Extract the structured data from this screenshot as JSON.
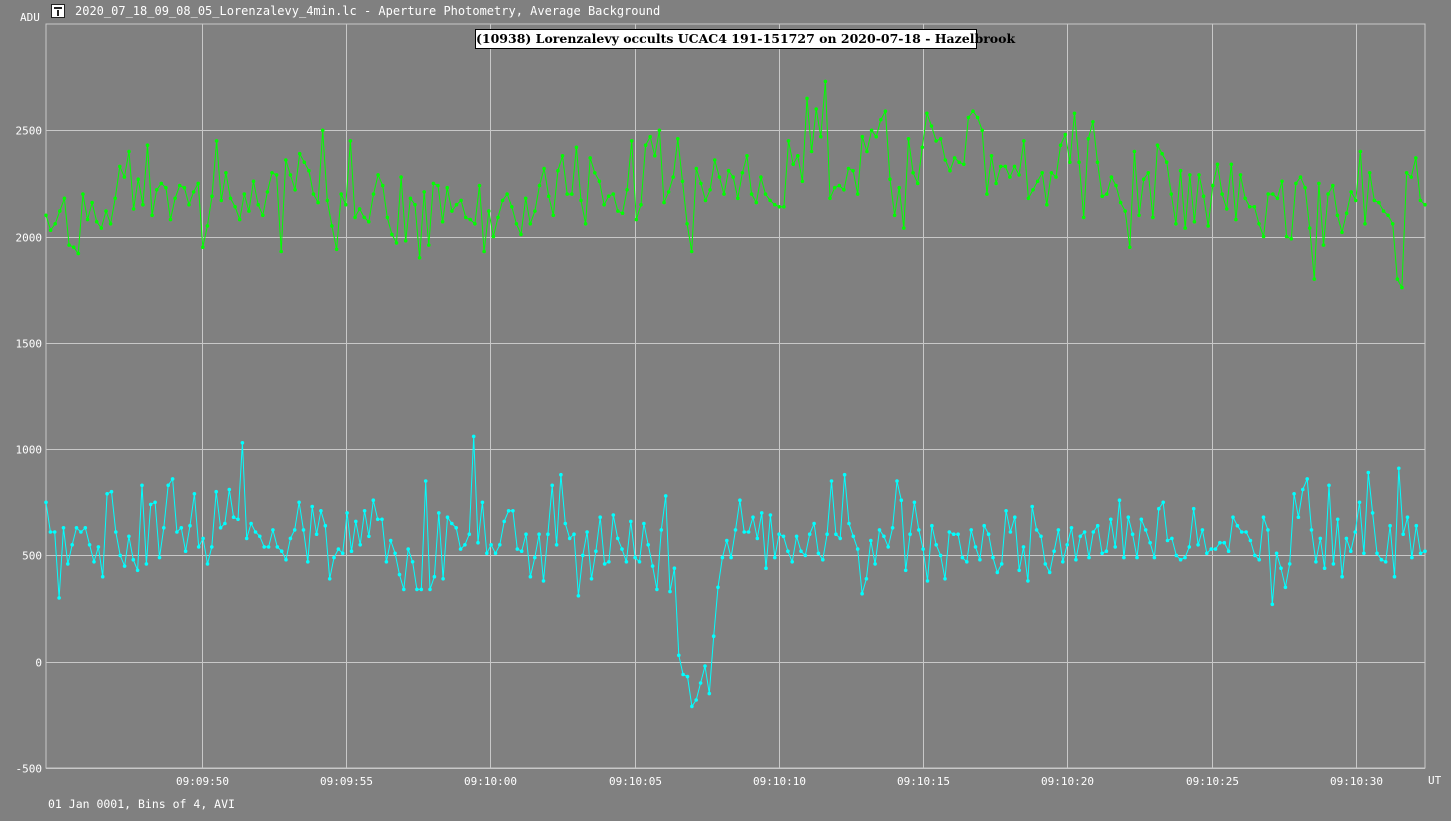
{
  "window": {
    "title": "2020_07_18_09_08_05_Lorenzalevy_4min.lc - Aperture Photometry, Average Background"
  },
  "footer_note": "01 Jan 0001, Bins of 4, AVI",
  "colors": {
    "background": "#808080",
    "grid": "#c8c8c8",
    "target_series": "#00ffff",
    "comparison_series": "#00ff00"
  },
  "chart_data": {
    "type": "line",
    "title": "(10938) Lorenzalevy occults UCAC4 191-151727 on 2020-07-18 - Hazelbrook",
    "ylabel": "ADU",
    "xlabel": "UT",
    "ylim": [
      -500,
      3000
    ],
    "xlim_seconds": [
      44.6,
      92.4
    ],
    "y_ticks": [
      -500,
      0,
      500,
      1000,
      1500,
      2000,
      2500
    ],
    "x_ticks": [
      {
        "label": "09:09:50",
        "value": 50
      },
      {
        "label": "09:09:55",
        "value": 55
      },
      {
        "label": "09:10:00",
        "value": 60
      },
      {
        "label": "09:10:05",
        "value": 65
      },
      {
        "label": "09:10:10",
        "value": 70
      },
      {
        "label": "09:10:15",
        "value": 75
      },
      {
        "label": "09:10:20",
        "value": 80
      },
      {
        "label": "09:10:25",
        "value": 85
      },
      {
        "label": "09:10:30",
        "value": 90
      }
    ],
    "grid": true,
    "legend": "none",
    "series": [
      {
        "color": "#00ff00",
        "x_start": 44.6,
        "x_end": 92.4,
        "values": [
          2100,
          2030,
          2060,
          2120,
          2180,
          1960,
          1950,
          1920,
          2200,
          2080,
          2160,
          2070,
          2040,
          2120,
          2060,
          2180,
          2330,
          2280,
          2400,
          2130,
          2270,
          2150,
          2430,
          2100,
          2220,
          2250,
          2230,
          2080,
          2180,
          2240,
          2230,
          2150,
          2210,
          2250,
          1950,
          2050,
          2190,
          2450,
          2170,
          2300,
          2180,
          2140,
          2080,
          2200,
          2120,
          2260,
          2150,
          2100,
          2210,
          2300,
          2290,
          1930,
          2360,
          2290,
          2220,
          2390,
          2350,
          2310,
          2200,
          2160,
          2500,
          2170,
          2050,
          1940,
          2200,
          2150,
          2450,
          2090,
          2130,
          2090,
          2070,
          2200,
          2290,
          2240,
          2090,
          2010,
          1970,
          2280,
          1980,
          2180,
          2150,
          1900,
          2210,
          1960,
          2250,
          2240,
          2070,
          2230,
          2120,
          2150,
          2170,
          2090,
          2080,
          2060,
          2240,
          1930,
          2120,
          2000,
          2090,
          2170,
          2200,
          2140,
          2060,
          2010,
          2180,
          2060,
          2120,
          2240,
          2320,
          2190,
          2100,
          2310,
          2380,
          2200,
          2200,
          2420,
          2170,
          2060,
          2370,
          2300,
          2260,
          2150,
          2190,
          2200,
          2120,
          2110,
          2220,
          2450,
          2080,
          2150,
          2430,
          2470,
          2380,
          2500,
          2160,
          2210,
          2280,
          2460,
          2260,
          2060,
          1930,
          2320,
          2250,
          2170,
          2220,
          2360,
          2280,
          2200,
          2310,
          2280,
          2180,
          2300,
          2380,
          2200,
          2160,
          2280,
          2200,
          2170,
          2150,
          2140,
          2140,
          2450,
          2340,
          2380,
          2260,
          2650,
          2400,
          2600,
          2470,
          2730,
          2180,
          2230,
          2240,
          2220,
          2320,
          2310,
          2200,
          2470,
          2400,
          2500,
          2470,
          2550,
          2590,
          2270,
          2100,
          2230,
          2040,
          2460,
          2300,
          2250,
          2420,
          2580,
          2520,
          2450,
          2460,
          2360,
          2310,
          2370,
          2350,
          2340,
          2560,
          2590,
          2560,
          2500,
          2200,
          2380,
          2250,
          2330,
          2330,
          2280,
          2330,
          2290,
          2450,
          2180,
          2220,
          2260,
          2300,
          2150,
          2300,
          2280,
          2430,
          2480,
          2350,
          2580,
          2350,
          2090,
          2460,
          2540,
          2350,
          2190,
          2200,
          2280,
          2240,
          2160,
          2120,
          1950,
          2400,
          2100,
          2270,
          2300,
          2090,
          2430,
          2390,
          2350,
          2200,
          2060,
          2310,
          2040,
          2290,
          2070,
          2290,
          2190,
          2050,
          2240,
          2340,
          2200,
          2130,
          2340,
          2080,
          2290,
          2180,
          2140,
          2140,
          2060,
          2000,
          2200,
          2200,
          2180,
          2260,
          2000,
          1990,
          2250,
          2280,
          2230,
          2040,
          1800,
          2250,
          1960,
          2200,
          2240,
          2100,
          2020,
          2110,
          2210,
          2170,
          2400,
          2060,
          2300,
          2170,
          2160,
          2120,
          2100,
          2060,
          1800,
          1760,
          2300,
          2280,
          2370,
          2170,
          2150
        ]
      },
      {
        "color": "#00ffff",
        "x_start": 44.6,
        "x_end": 92.4,
        "values": [
          750,
          610,
          610,
          300,
          630,
          460,
          550,
          630,
          610,
          630,
          550,
          470,
          540,
          400,
          790,
          800,
          610,
          500,
          450,
          590,
          480,
          430,
          830,
          460,
          740,
          750,
          490,
          630,
          830,
          860,
          610,
          630,
          520,
          640,
          790,
          540,
          580,
          460,
          540,
          800,
          630,
          650,
          810,
          680,
          670,
          1030,
          580,
          650,
          610,
          590,
          540,
          540,
          620,
          540,
          520,
          480,
          580,
          620,
          750,
          620,
          470,
          730,
          600,
          710,
          640,
          390,
          490,
          530,
          510,
          700,
          520,
          660,
          550,
          710,
          590,
          760,
          670,
          670,
          470,
          570,
          510,
          410,
          340,
          530,
          470,
          340,
          340,
          850,
          340,
          400,
          700,
          390,
          680,
          650,
          630,
          530,
          550,
          600,
          1060,
          560,
          750,
          510,
          550,
          510,
          550,
          660,
          710,
          710,
          530,
          520,
          600,
          400,
          490,
          600,
          380,
          600,
          830,
          550,
          880,
          650,
          580,
          600,
          310,
          500,
          610,
          390,
          520,
          680,
          460,
          470,
          690,
          580,
          530,
          470,
          660,
          490,
          470,
          650,
          550,
          450,
          340,
          620,
          780,
          330,
          440,
          30,
          -60,
          -70,
          -210,
          -180,
          -100,
          -20,
          -150,
          120,
          350,
          490,
          570,
          490,
          620,
          760,
          610,
          610,
          680,
          580,
          700,
          440,
          690,
          490,
          600,
          590,
          520,
          470,
          590,
          520,
          500,
          600,
          650,
          510,
          480,
          600,
          850,
          600,
          580,
          880,
          650,
          590,
          530,
          320,
          390,
          570,
          460,
          620,
          590,
          540,
          630,
          850,
          760,
          430,
          600,
          750,
          620,
          530,
          380,
          640,
          550,
          500,
          390,
          610,
          600,
          600,
          490,
          470,
          620,
          540,
          480,
          640,
          600,
          490,
          420,
          460,
          710,
          610,
          680,
          430,
          540,
          380,
          730,
          620,
          590,
          460,
          420,
          520,
          620,
          470,
          550,
          630,
          480,
          590,
          610,
          490,
          610,
          640,
          510,
          520,
          670,
          540,
          760,
          490,
          680,
          600,
          490,
          670,
          620,
          560,
          490,
          720,
          750,
          570,
          580,
          500,
          480,
          490,
          540,
          720,
          550,
          620,
          510,
          530,
          530,
          560,
          560,
          520,
          680,
          640,
          610,
          610,
          570,
          500,
          480,
          680,
          620,
          270,
          510,
          440,
          350,
          460,
          790,
          680,
          810,
          860,
          620,
          470,
          580,
          440,
          830,
          460,
          670,
          400,
          580,
          520,
          610,
          750,
          510,
          890,
          700,
          510,
          480,
          470,
          640,
          400,
          910,
          600,
          680,
          490,
          640,
          510,
          520
        ]
      }
    ]
  }
}
